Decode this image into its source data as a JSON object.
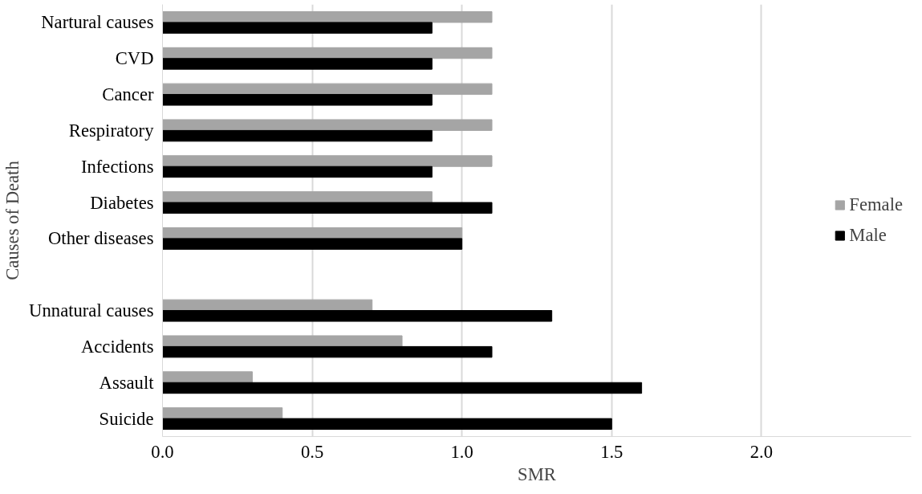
{
  "chart_data": {
    "type": "bar",
    "orientation": "horizontal",
    "xlabel": "SMR",
    "ylabel": "Causes of Death",
    "categories": [
      "Nartural causes",
      "CVD",
      "Cancer",
      "Respiratory",
      "Infections",
      "Diabetes",
      "Other diseases",
      null,
      "Unnatural causes",
      "Accidents",
      "Assault",
      "Suicide"
    ],
    "series": [
      {
        "name": "Female",
        "color": "#a5a5a5",
        "values": [
          1.1,
          1.1,
          1.1,
          1.1,
          1.1,
          0.9,
          1.0,
          null,
          0.7,
          0.8,
          0.3,
          0.4
        ]
      },
      {
        "name": "Male",
        "color": "#000000",
        "values": [
          0.9,
          0.9,
          0.9,
          0.9,
          0.9,
          1.1,
          1.0,
          null,
          1.3,
          1.1,
          1.6,
          1.5
        ]
      }
    ],
    "xlim": [
      0,
      2.5
    ],
    "xticks": [
      {
        "value": 0,
        "label": "0.0"
      },
      {
        "value": 0.5,
        "label": "0.5"
      },
      {
        "value": 1,
        "label": "1.0"
      },
      {
        "value": 1.5,
        "label": "1.5"
      },
      {
        "value": 2,
        "label": "2.0"
      }
    ],
    "grid": "x",
    "legend": "right"
  }
}
